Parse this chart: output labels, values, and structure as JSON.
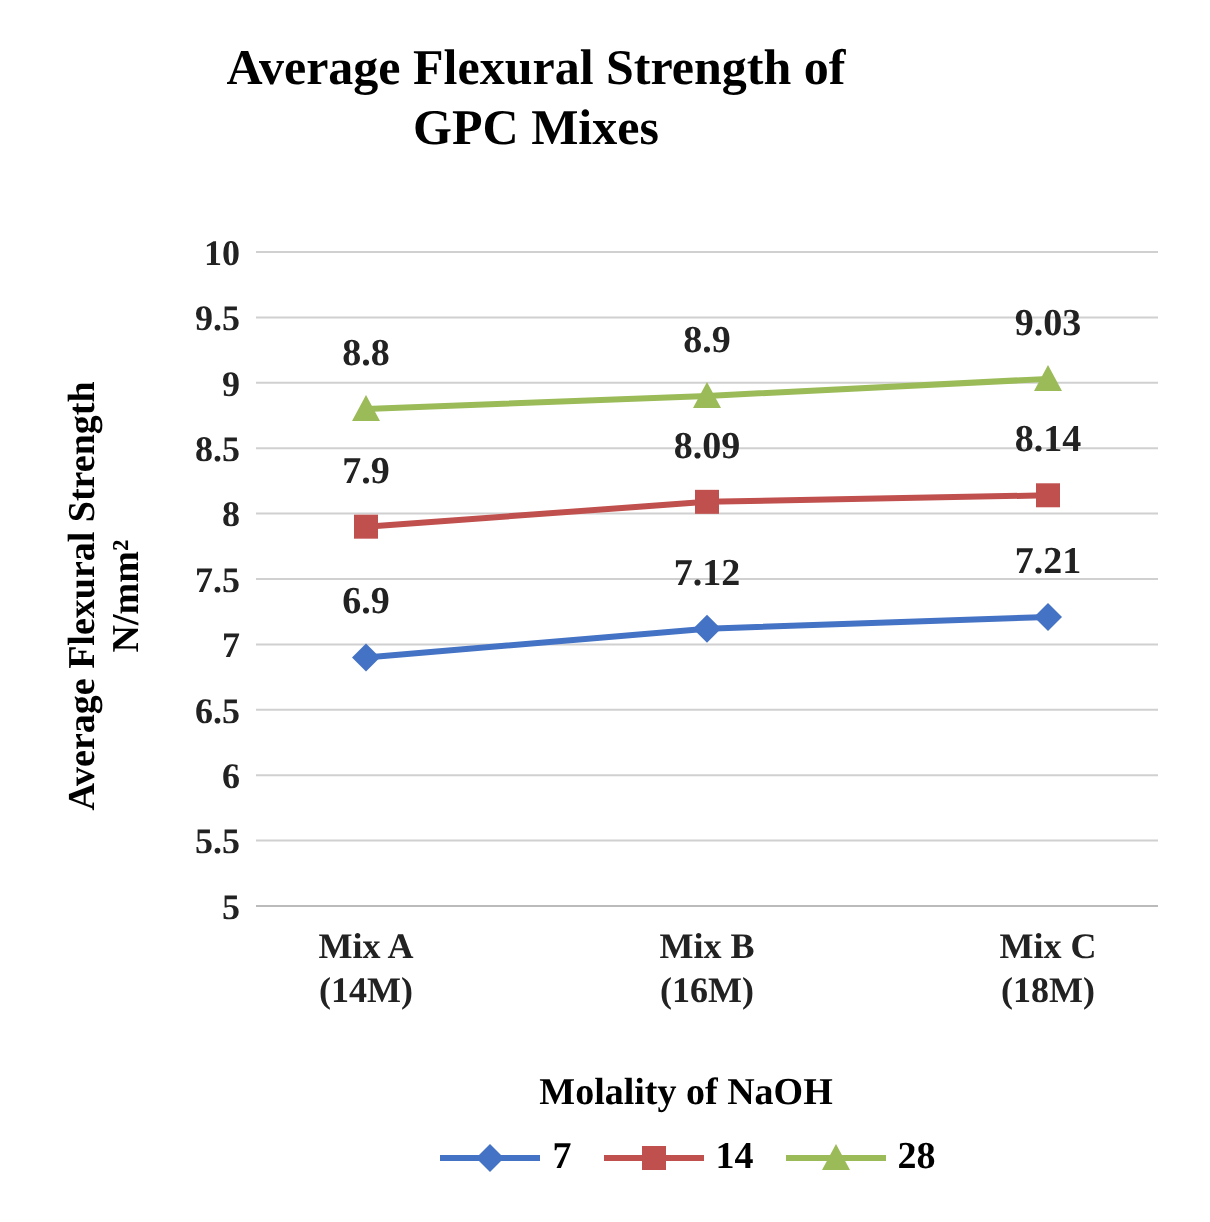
{
  "chart_data": {
    "type": "line",
    "title": "Average Flexural Strength of GPC Mixes",
    "xlabel": "Molality of NaOH",
    "ylabel": "Average Flexural Strength N/mm²",
    "categories": [
      "Mix A (14M)",
      "Mix B (16M)",
      "Mix C (18M)"
    ],
    "series": [
      {
        "name": "7",
        "color": "#4472c4",
        "marker": "diamond",
        "values": [
          6.9,
          7.12,
          7.21
        ]
      },
      {
        "name": "14",
        "color": "#c0504d",
        "marker": "square",
        "values": [
          7.9,
          8.09,
          8.14
        ]
      },
      {
        "name": "28",
        "color": "#9bbb59",
        "marker": "triangle",
        "values": [
          8.8,
          8.9,
          9.03
        ]
      }
    ],
    "ylim": [
      5,
      10
    ],
    "yticks": [
      5,
      5.5,
      6,
      6.5,
      7,
      7.5,
      8,
      8.5,
      9,
      9.5,
      10
    ],
    "grid": "y",
    "legend": "bottom",
    "data_labels": true
  }
}
